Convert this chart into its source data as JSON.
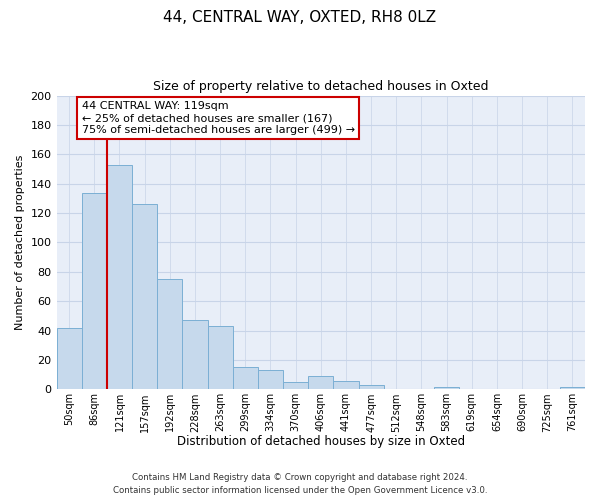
{
  "title": "44, CENTRAL WAY, OXTED, RH8 0LZ",
  "subtitle": "Size of property relative to detached houses in Oxted",
  "xlabel": "Distribution of detached houses by size in Oxted",
  "ylabel": "Number of detached properties",
  "bar_labels": [
    "50sqm",
    "86sqm",
    "121sqm",
    "157sqm",
    "192sqm",
    "228sqm",
    "263sqm",
    "299sqm",
    "334sqm",
    "370sqm",
    "406sqm",
    "441sqm",
    "477sqm",
    "512sqm",
    "548sqm",
    "583sqm",
    "619sqm",
    "654sqm",
    "690sqm",
    "725sqm",
    "761sqm"
  ],
  "bar_values": [
    42,
    134,
    153,
    126,
    75,
    47,
    43,
    15,
    13,
    5,
    9,
    6,
    3,
    0,
    0,
    2,
    0,
    0,
    0,
    0,
    2
  ],
  "bar_color": "#c6d9ec",
  "bar_edge_color": "#7bafd4",
  "highlight_line_x_label": "121sqm",
  "highlight_line_color": "#cc0000",
  "ylim": [
    0,
    200
  ],
  "yticks": [
    0,
    20,
    40,
    60,
    80,
    100,
    120,
    140,
    160,
    180,
    200
  ],
  "annotation_title": "44 CENTRAL WAY: 119sqm",
  "annotation_line1": "← 25% of detached houses are smaller (167)",
  "annotation_line2": "75% of semi-detached houses are larger (499) →",
  "annotation_box_color": "#ffffff",
  "annotation_box_edge_color": "#cc0000",
  "footer_line1": "Contains HM Land Registry data © Crown copyright and database right 2024.",
  "footer_line2": "Contains public sector information licensed under the Open Government Licence v3.0.",
  "grid_color": "#c8d4e8",
  "background_color": "#e8eef8"
}
